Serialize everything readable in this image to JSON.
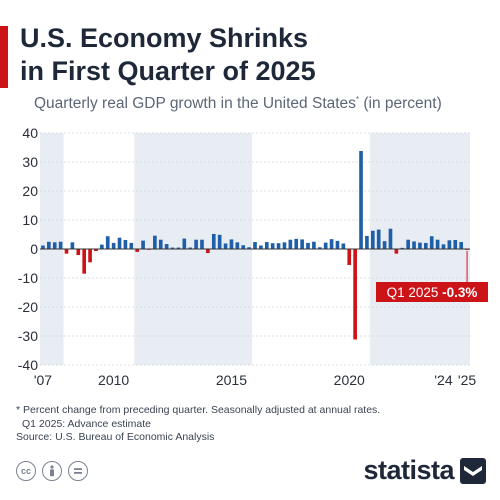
{
  "header": {
    "title_line1": "U.S. Economy Shrinks",
    "title_line2": "in First Quarter of 2025",
    "subtitle": "Quarterly real GDP growth in the United States",
    "subtitle_mark": "*",
    "subtitle_unit": "(in percent)"
  },
  "footer": {
    "note_line1": "* Percent change from preceding quarter. Seasonally adjusted at annual rates.",
    "note_line2": "Q1 2025: Advance estimate",
    "source": "Source: U.S. Bureau of Economic Analysis",
    "license_icons": [
      "cc-icon",
      "by-icon",
      "nd-icon"
    ],
    "brand": "statista"
  },
  "chart_data": {
    "type": "bar",
    "title": "U.S. Economy Shrinks in First Quarter of 2025",
    "subtitle": "Quarterly real GDP growth in the United States (in percent)",
    "ylim": [
      -40,
      40
    ],
    "yticks": [
      40,
      30,
      20,
      10,
      0,
      -10,
      -20,
      -30,
      -40
    ],
    "xtick_labels": [
      {
        "label": "'07",
        "index": 0
      },
      {
        "label": "2010",
        "index": 12
      },
      {
        "label": "2015",
        "index": 32
      },
      {
        "label": "2020",
        "index": 52
      },
      {
        "label": "'24",
        "index": 68
      },
      {
        "label": "'25",
        "index": 72
      }
    ],
    "shaded_bands": [
      [
        0,
        3
      ],
      [
        16,
        35
      ],
      [
        56,
        72
      ]
    ],
    "categories": [
      "2007 Q1",
      "2007 Q2",
      "2007 Q3",
      "2007 Q4",
      "2008 Q1",
      "2008 Q2",
      "2008 Q3",
      "2008 Q4",
      "2009 Q1",
      "2009 Q2",
      "2009 Q3",
      "2009 Q4",
      "2010 Q1",
      "2010 Q2",
      "2010 Q3",
      "2010 Q4",
      "2011 Q1",
      "2011 Q2",
      "2011 Q3",
      "2011 Q4",
      "2012 Q1",
      "2012 Q2",
      "2012 Q3",
      "2012 Q4",
      "2013 Q1",
      "2013 Q2",
      "2013 Q3",
      "2013 Q4",
      "2014 Q1",
      "2014 Q2",
      "2014 Q3",
      "2014 Q4",
      "2015 Q1",
      "2015 Q2",
      "2015 Q3",
      "2015 Q4",
      "2016 Q1",
      "2016 Q2",
      "2016 Q3",
      "2016 Q4",
      "2017 Q1",
      "2017 Q2",
      "2017 Q3",
      "2017 Q4",
      "2018 Q1",
      "2018 Q2",
      "2018 Q3",
      "2018 Q4",
      "2019 Q1",
      "2019 Q2",
      "2019 Q3",
      "2019 Q4",
      "2020 Q1",
      "2020 Q2",
      "2020 Q3",
      "2020 Q4",
      "2021 Q1",
      "2021 Q2",
      "2021 Q3",
      "2021 Q4",
      "2022 Q1",
      "2022 Q2",
      "2022 Q3",
      "2022 Q4",
      "2023 Q1",
      "2023 Q2",
      "2023 Q3",
      "2023 Q4",
      "2024 Q1",
      "2024 Q2",
      "2024 Q3",
      "2024 Q4",
      "2025 Q1"
    ],
    "values": [
      1.2,
      2.5,
      2.3,
      2.5,
      -1.6,
      2.3,
      -2.1,
      -8.5,
      -4.6,
      -0.7,
      1.5,
      4.4,
      2.1,
      3.9,
      3.1,
      2.1,
      -1.0,
      2.9,
      -0.1,
      4.6,
      3.2,
      1.7,
      0.5,
      0.5,
      3.6,
      0.5,
      3.2,
      3.2,
      -1.4,
      5.2,
      4.9,
      1.9,
      3.3,
      2.3,
      1.3,
      0.6,
      2.4,
      1.2,
      2.4,
      2.0,
      2.0,
      2.3,
      3.2,
      3.5,
      3.3,
      2.1,
      2.5,
      0.6,
      2.2,
      3.4,
      2.8,
      1.9,
      -5.5,
      -31.2,
      33.8,
      4.5,
      6.3,
      6.7,
      2.7,
      7.0,
      -1.6,
      0.4,
      3.2,
      2.6,
      2.2,
      2.1,
      4.4,
      3.2,
      1.6,
      3.0,
      3.1,
      2.4,
      -0.3
    ],
    "colors": {
      "positive": "#1f5fa8",
      "negative": "#cc1418",
      "band": "#e8ecf3",
      "grid": "#cfd5de"
    },
    "annotation": {
      "label": "Q1 2025 ",
      "value": "-0.3%",
      "index": 72
    }
  }
}
